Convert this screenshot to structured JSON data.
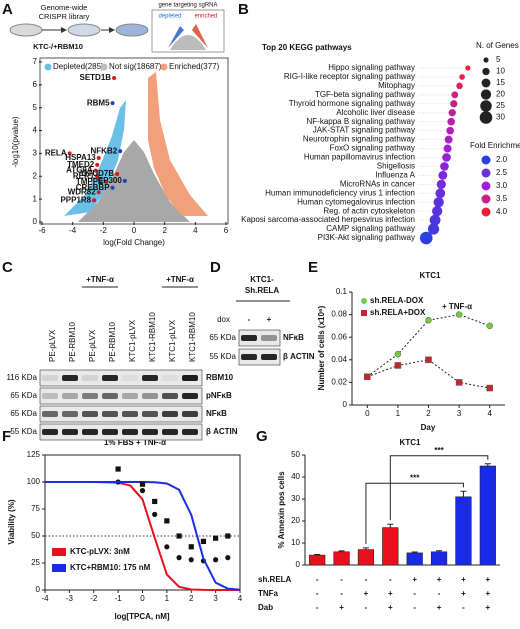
{
  "panel_labels": [
    "A",
    "B",
    "C",
    "D",
    "E",
    "F",
    "G"
  ],
  "schematic": {
    "library": [
      "Genome-wide",
      "CRISPR library"
    ],
    "cells": "KTC-/+RBM10",
    "inset_title": "gene targeting sgRNA",
    "inset_legend": [
      "depleted",
      "enriched"
    ]
  },
  "chart_data": [
    {
      "type": "volcano",
      "xlabel": "log(Fold Change)",
      "ylabel": "-log10(pvalue)",
      "xlim": [
        -6,
        6
      ],
      "ylim": [
        0,
        7
      ],
      "xticks": [
        -6,
        -4,
        -2,
        0,
        2,
        4,
        6
      ],
      "yticks": [
        0,
        1,
        2,
        3,
        4,
        5,
        6,
        7
      ],
      "legend": [
        {
          "name": "Depleted(285)",
          "color": "#6cc0e5"
        },
        {
          "name": "Not sig(18687)",
          "color": "#bdbdbd"
        },
        {
          "name": "Enriched(377)",
          "color": "#f2a07b"
        }
      ],
      "genes": {
        "names": [
          "SETD1B",
          "RBM5",
          "NFKB2",
          "RELA",
          "HSPA13",
          "TMED2",
          "ATG9A",
          "RER1",
          "TMPPE",
          "OTUD7B",
          "EP300",
          "CREBBP",
          "WDR82",
          "PPP1R8"
        ],
        "x": [
          -1.3,
          -1.4,
          -0.9,
          -4.2,
          -2.3,
          -2.4,
          -2.5,
          -2.4,
          -1.8,
          -1.1,
          -0.6,
          -1.4,
          -2.3,
          -2.6
        ],
        "y": [
          6.3,
          5.2,
          3.1,
          3.0,
          2.8,
          2.5,
          2.25,
          2.0,
          1.75,
          2.1,
          1.8,
          1.5,
          1.3,
          0.95
        ],
        "colors": [
          "#d7191c",
          "#1f3fbf",
          "#1f3fbf",
          "#d7191c",
          "#d7191c",
          "#d7191c",
          "#d7191c",
          "#d7191c",
          "#d7191c",
          "#d7191c",
          "#1f3fbf",
          "#1f3fbf",
          "#d7191c",
          "#d7191c"
        ]
      }
    },
    {
      "type": "dot",
      "title": "Top 20 KEGG pathways",
      "categories": [
        "Hippo signaling pathway",
        "RIG-I-like receptor signaling pathway",
        "Mitophagy",
        "TGF-beta signaling pathway",
        "Thyroid hormone signaling pathway",
        "Alcoholic liver disease",
        "NF-kappa B signaling pathway",
        "JAK-STAT signaling pathway",
        "Neurotrophin signaling pathway",
        "FoxO signaling pathway",
        "Human papillomavirus infection",
        "Shigellosis",
        "Influenza A",
        "MicroRNAs in cancer",
        "Human immunodeficiency virus 1 infection",
        "Human cytomegalovirus infection",
        "Reg. of actin cytoskeleton",
        "Kaposi sarcoma-associated herpesvirus infection",
        "CAMP signaling pathway",
        "PI3K-Akt signaling pathway"
      ],
      "category_colors": [
        "#111111",
        "#d7191c",
        "#d7191c",
        "#111111",
        "#111111",
        "#111111",
        "#d7191c",
        "#111111",
        "#d7191c",
        "#111111",
        "#111111",
        "#d7191c",
        "#111111",
        "#111111",
        "#d7191c",
        "#d7191c",
        "#111111",
        "#d7191c",
        "#d7191c",
        "#d7191c"
      ],
      "xlim": [
        0,
        1
      ],
      "x": [
        0.92,
        0.81,
        0.76,
        0.67,
        0.65,
        0.62,
        0.6,
        0.58,
        0.55,
        0.53,
        0.51,
        0.47,
        0.44,
        0.41,
        0.39,
        0.36,
        0.33,
        0.29,
        0.26,
        0.12
      ],
      "sizes": [
        5,
        6,
        8,
        9,
        10,
        10,
        11,
        11,
        12,
        12,
        14,
        14,
        15,
        16,
        18,
        20,
        20,
        22,
        24,
        30
      ],
      "fold_enrichment": [
        4.0,
        3.9,
        3.8,
        3.6,
        3.5,
        3.4,
        3.3,
        3.2,
        3.1,
        3.0,
        2.9,
        2.8,
        2.7,
        2.6,
        2.5,
        2.4,
        2.4,
        2.3,
        2.2,
        2.0
      ],
      "size_legend_title": "N. of Genes",
      "size_legend": [
        5,
        10,
        15,
        20,
        25,
        30
      ],
      "color_legend_title": "Fold Enrichment",
      "color_legend": [
        {
          "value": 2,
          "label": "2.0"
        },
        2.5,
        {
          "value": 3,
          "label": "3.0"
        },
        3.5,
        {
          "value": 4,
          "label": "4.0"
        }
      ],
      "color_scale": [
        "#2b3fe0",
        "#a21fd6",
        "#f0203a"
      ]
    },
    {
      "type": "line",
      "title": "KTC1",
      "xlabel": "Day",
      "ylabel": "Number of cells (x10⁶)",
      "annotation": "+ TNF-α",
      "x": [
        0,
        1,
        2,
        3,
        4
      ],
      "xlim": [
        -0.5,
        4.5
      ],
      "xticks": [
        0,
        1,
        2,
        3,
        4
      ],
      "ylim": [
        0,
        0.1
      ],
      "yticks": [
        0,
        0.02,
        0.04,
        0.06,
        0.08,
        0.1
      ],
      "series": [
        {
          "name": "sh.RELA-DOX",
          "color": "#7ac943",
          "marker": "circle",
          "values": [
            0.025,
            0.045,
            0.075,
            0.08,
            0.07
          ]
        },
        {
          "name": "sh.RELA+DOX",
          "color": "#c1272d",
          "marker": "square",
          "values": [
            0.025,
            0.035,
            0.04,
            0.02,
            0.015
          ]
        }
      ]
    },
    {
      "type": "dose_response",
      "title": "1% FBS + TNF-α",
      "xlabel": "log[TPCA, nM]",
      "ylabel": "Viability (%)",
      "xlim": [
        -4,
        4
      ],
      "xticks": [
        -4,
        -3,
        -2,
        -1,
        0,
        1,
        2,
        3,
        4
      ],
      "ylim": [
        0,
        125
      ],
      "yticks": [
        0,
        25,
        50,
        75,
        100,
        125
      ],
      "reference_line": 50,
      "series": [
        {
          "name": "KTC-pLVX: 3nM",
          "color": "#e8101a",
          "marker": "circle",
          "x": [
            -1,
            0,
            0.5,
            1,
            1.5,
            2,
            2.5,
            3,
            3.5
          ],
          "values": [
            100,
            92,
            70,
            40,
            30,
            28,
            27,
            28,
            30
          ],
          "fit_x": [
            -4,
            -3,
            -2,
            -1,
            -0.5,
            0,
            0.5,
            1,
            1.5,
            2,
            2.5,
            3,
            3.5,
            4
          ],
          "fit_values": [
            100,
            100,
            100,
            99.4,
            96.7,
            84,
            48.3,
            14.3,
            2.9,
            0.5,
            0.1,
            0,
            0,
            0
          ]
        },
        {
          "name": "KTC+RBM10: 175 nM",
          "color": "#1a2be8",
          "marker": "square",
          "x": [
            -1,
            0,
            0.5,
            1,
            1.5,
            2,
            2.5,
            3,
            3.5
          ],
          "values": [
            112,
            98,
            82,
            64,
            50,
            40,
            45,
            48,
            50
          ],
          "fit_x": [
            -4,
            -3,
            -2,
            -1,
            -0.5,
            0,
            0.5,
            1,
            1.5,
            2,
            2.5,
            3,
            3.5,
            4
          ],
          "fit_values": [
            100,
            100,
            100,
            100,
            100,
            100,
            99.8,
            98.6,
            92.8,
            69.6,
            29,
            6.8,
            1.3,
            0.2
          ]
        }
      ]
    },
    {
      "type": "bar",
      "title": "KTC1",
      "ylabel": "% Annexin pos cells",
      "ylim": [
        0,
        50
      ],
      "yticks": [
        0,
        10,
        20,
        30,
        40,
        50
      ],
      "values": [
        4.5,
        6,
        7,
        17,
        5.5,
        6,
        31,
        45
      ],
      "errors": [
        0.3,
        0.4,
        0.8,
        1.5,
        0.4,
        0.5,
        2.5,
        1
      ],
      "colors": [
        "#e8101a",
        "#e8101a",
        "#e8101a",
        "#e8101a",
        "#1a2be8",
        "#1a2be8",
        "#1a2be8",
        "#1a2be8"
      ],
      "conditions": [
        {
          "name": "sh.RELA",
          "signs": [
            "-",
            "-",
            "-",
            "-",
            "+",
            "+",
            "+",
            "+"
          ]
        },
        {
          "name": "TNFa",
          "signs": [
            "-",
            "-",
            "+",
            "+",
            "-",
            "-",
            "+",
            "+"
          ]
        },
        {
          "name": "Dab",
          "signs": [
            "-",
            "+",
            "-",
            "+",
            "-",
            "+",
            "-",
            "+"
          ]
        }
      ],
      "significance": [
        {
          "from": 2,
          "to": 6,
          "label": "***"
        },
        {
          "from": 3,
          "to": 7,
          "label": "***"
        }
      ]
    }
  ],
  "blot_c": {
    "lanes": [
      "PE-pLVX",
      "PE-RBM10",
      "PE-pLVX",
      "PE-RBM10",
      "KTC1-pLVX",
      "KTC1-RBM10",
      "KTC1-pLVX",
      "KTC1-RBM10"
    ],
    "treatment": [
      "+TNF-α",
      "+TNF-α"
    ],
    "rows": [
      {
        "name": "RBM10",
        "marker": "116 KDa"
      },
      {
        "name": "pNFκB",
        "marker": "65 KDa"
      },
      {
        "name": "NFκB",
        "marker": "65 KDa"
      },
      {
        "name": "β ACTIN",
        "marker": "55 KDa"
      }
    ]
  },
  "blot_d": {
    "title": [
      "KTC1-",
      "Sh.RELA"
    ],
    "treatment": "dox",
    "lanes": [
      "-",
      "+"
    ],
    "rows": [
      {
        "name": "NFκB",
        "marker": "65 KDa"
      },
      {
        "name": "β ACTIN",
        "marker": "55 KDa"
      }
    ]
  }
}
